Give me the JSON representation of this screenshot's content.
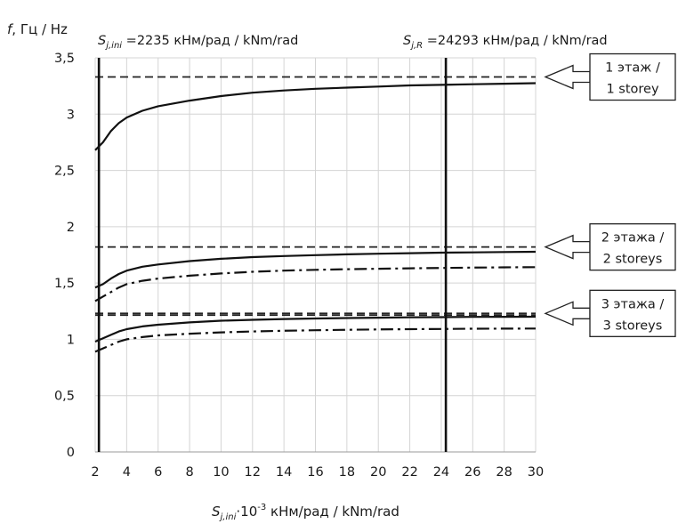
{
  "chart_data": {
    "type": "line",
    "y_axis_label": {
      "symbol": "f",
      "text": ", Гц / Hz"
    },
    "x_axis_label": {
      "symbol": "S",
      "subscript": "j,ini",
      "middle": "·10",
      "superscript": "-3",
      "unit": " кНм/рад / kNm/rad"
    },
    "xlim": [
      2,
      30
    ],
    "ylim": [
      0,
      3.5
    ],
    "x_ticks": [
      2,
      4,
      6,
      8,
      10,
      12,
      14,
      16,
      18,
      20,
      22,
      24,
      26,
      28,
      30
    ],
    "y_ticks": [
      {
        "value": 0,
        "label": "0"
      },
      {
        "value": 0.5,
        "label": "0,5"
      },
      {
        "value": 1,
        "label": "1"
      },
      {
        "value": 1.5,
        "label": "1,5"
      },
      {
        "value": 2,
        "label": "2"
      },
      {
        "value": 2.5,
        "label": "2,5"
      },
      {
        "value": 3,
        "label": "3"
      },
      {
        "value": 3.5,
        "label": "3,5"
      }
    ],
    "grid": true,
    "reference_lines": [
      {
        "x": 2.235,
        "symbol": "S",
        "subscript": "j,ini",
        "text": " =2235 кНм/рад / kNm/rad"
      },
      {
        "x": 24.293,
        "symbol": "S",
        "subscript": "j,R",
        "text": " =24293 кНм/рад / kNm/rad"
      }
    ],
    "asymptotes": [
      {
        "y": 3.33,
        "style": "dashed"
      },
      {
        "y": 1.82,
        "style": "dashed"
      },
      {
        "y": 1.23,
        "style": "dashed"
      },
      {
        "y": 1.215,
        "style": "dashed"
      }
    ],
    "series": [
      {
        "style": "solid",
        "x": [
          2.0,
          2.5,
          3,
          3.5,
          4,
          5,
          6,
          8,
          10,
          12,
          14,
          16,
          18,
          20,
          22,
          24,
          26,
          28,
          30
        ],
        "y": [
          2.68,
          2.75,
          2.85,
          2.92,
          2.97,
          3.03,
          3.07,
          3.12,
          3.16,
          3.19,
          3.21,
          3.225,
          3.235,
          3.245,
          3.255,
          3.26,
          3.265,
          3.27,
          3.275
        ]
      },
      {
        "style": "solid",
        "x": [
          2.0,
          2.5,
          3,
          3.5,
          4,
          5,
          6,
          8,
          10,
          12,
          14,
          16,
          18,
          20,
          22,
          24,
          26,
          28,
          30
        ],
        "y": [
          1.46,
          1.49,
          1.54,
          1.58,
          1.61,
          1.645,
          1.665,
          1.695,
          1.715,
          1.73,
          1.74,
          1.748,
          1.755,
          1.76,
          1.765,
          1.77,
          1.772,
          1.775,
          1.778
        ]
      },
      {
        "style": "dashdot",
        "x": [
          2.0,
          2.5,
          3,
          3.5,
          4,
          5,
          6,
          8,
          10,
          12,
          14,
          16,
          18,
          20,
          22,
          24,
          26,
          28,
          30
        ],
        "y": [
          1.34,
          1.38,
          1.42,
          1.46,
          1.49,
          1.52,
          1.54,
          1.565,
          1.585,
          1.6,
          1.61,
          1.617,
          1.623,
          1.627,
          1.631,
          1.634,
          1.637,
          1.639,
          1.641
        ]
      },
      {
        "style": "solid",
        "x": [
          2.0,
          2.5,
          3,
          3.5,
          4,
          5,
          6,
          8,
          10,
          12,
          14,
          16,
          18,
          20,
          22,
          24,
          26,
          28,
          30
        ],
        "y": [
          0.98,
          1.01,
          1.04,
          1.07,
          1.09,
          1.115,
          1.13,
          1.15,
          1.165,
          1.173,
          1.18,
          1.185,
          1.189,
          1.192,
          1.195,
          1.197,
          1.199,
          1.2,
          1.201
        ]
      },
      {
        "style": "dashdot",
        "x": [
          2.0,
          2.5,
          3,
          3.5,
          4,
          5,
          6,
          8,
          10,
          12,
          14,
          16,
          18,
          20,
          22,
          24,
          26,
          28,
          30
        ],
        "y": [
          0.89,
          0.92,
          0.95,
          0.98,
          1.0,
          1.02,
          1.035,
          1.05,
          1.062,
          1.07,
          1.076,
          1.081,
          1.085,
          1.088,
          1.09,
          1.092,
          1.094,
          1.095,
          1.096
        ]
      }
    ],
    "callouts": [
      {
        "y": 3.33,
        "line1": "1 этаж /",
        "line2": "1 storey"
      },
      {
        "y": 1.82,
        "line1": "2 этажа /",
        "line2": "2 storeys"
      },
      {
        "y": 1.23,
        "line1": "3 этажа /",
        "line2": "3 storeys"
      }
    ]
  }
}
